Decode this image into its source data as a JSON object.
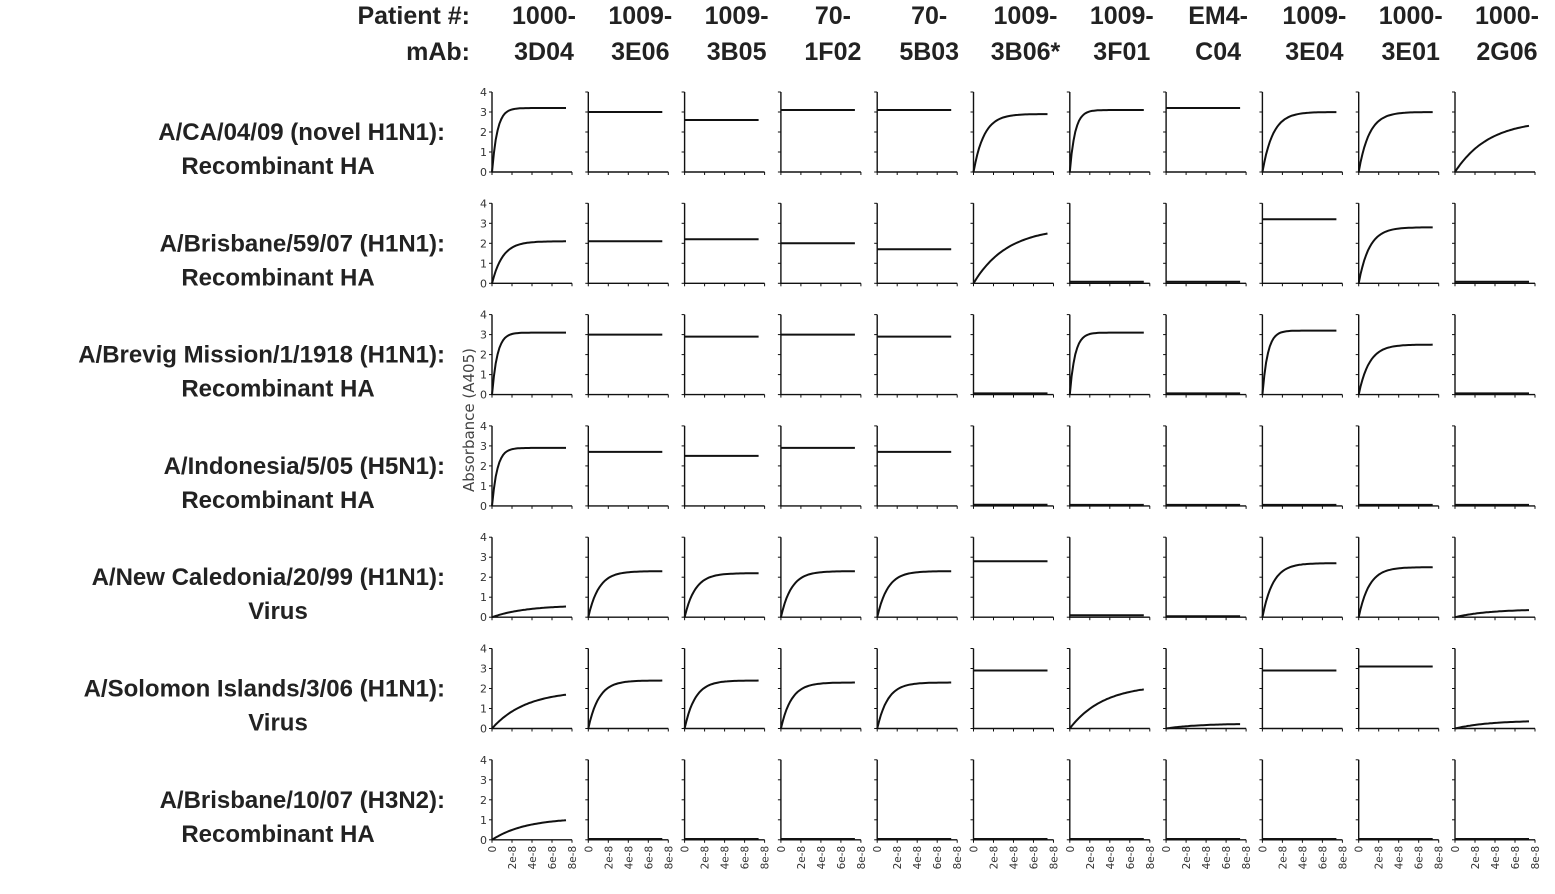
{
  "header": {
    "row1_label": "Patient #:",
    "row2_label": "mAb:"
  },
  "chart_data": {
    "type": "line",
    "ylabel": "Absorbance (A405)",
    "ylim": [
      0,
      4
    ],
    "yticks": [
      "0",
      "1",
      "2",
      "3",
      "4"
    ],
    "xlim": [
      0,
      8e-08
    ],
    "xticks": [
      "0",
      "2e-8",
      "4e-8",
      "6e-8",
      "8e-8"
    ],
    "columns": [
      {
        "patient": "1000-",
        "mab": "3D04"
      },
      {
        "patient": "1009-",
        "mab": "3E06"
      },
      {
        "patient": "1009-",
        "mab": "3B05"
      },
      {
        "patient": "70-",
        "mab": "1F02"
      },
      {
        "patient": "70-",
        "mab": "5B03"
      },
      {
        "patient": "1009-",
        "mab": "3B06*"
      },
      {
        "patient": "1009-",
        "mab": "3F01"
      },
      {
        "patient": "EM4-",
        "mab": "C04"
      },
      {
        "patient": "1009-",
        "mab": "3E04"
      },
      {
        "patient": "1000-",
        "mab": "3E01"
      },
      {
        "patient": "1000-",
        "mab": "2G06"
      }
    ],
    "rows": [
      {
        "line1": "A/CA/04/09 (novel H1N1):",
        "line2": "Recombinant HA",
        "plateau": [
          3.2,
          3.0,
          2.6,
          3.1,
          3.1,
          2.9,
          3.1,
          3.2,
          3.0,
          3.0,
          2.6
        ],
        "shape": [
          "fast",
          "flat",
          "flat",
          "flat",
          "flat",
          "mid",
          "fast",
          "flat",
          "mid",
          "mid",
          "slow"
        ]
      },
      {
        "line1": "A/Brisbane/59/07 (H1N1):",
        "line2": "Recombinant HA",
        "plateau": [
          2.1,
          2.1,
          2.2,
          2.0,
          1.7,
          2.8,
          0.08,
          0.08,
          3.2,
          2.8,
          0.08
        ],
        "shape": [
          "mid",
          "flat",
          "flat",
          "flat",
          "flat",
          "slow",
          "flat",
          "flat",
          "flat",
          "mid",
          "flat"
        ]
      },
      {
        "line1": "A/Brevig Mission/1/1918 (H1N1):",
        "line2": "Recombinant HA",
        "plateau": [
          3.1,
          3.0,
          2.9,
          3.0,
          2.9,
          0.06,
          3.1,
          0.06,
          3.2,
          2.5,
          0.06
        ],
        "shape": [
          "fast",
          "flat",
          "flat",
          "flat",
          "flat",
          "flat",
          "fast",
          "flat",
          "fast",
          "mid",
          "flat"
        ]
      },
      {
        "line1": "A/Indonesia/5/05 (H5N1):",
        "line2": "Recombinant HA",
        "plateau": [
          2.9,
          2.7,
          2.5,
          2.9,
          2.7,
          0.06,
          0.05,
          0.05,
          0.05,
          0.05,
          0.05
        ],
        "shape": [
          "fast",
          "flat",
          "flat",
          "flat",
          "flat",
          "flat",
          "flat",
          "flat",
          "flat",
          "flat",
          "flat"
        ]
      },
      {
        "line1": "A/New Caledonia/20/99 (H1N1):",
        "line2": "Virus",
        "plateau": [
          0.6,
          2.3,
          2.2,
          2.3,
          2.3,
          2.8,
          0.1,
          0.05,
          2.7,
          2.5,
          0.4
        ],
        "shape": [
          "slow",
          "mid",
          "mid",
          "mid",
          "mid",
          "flat",
          "flat",
          "flat",
          "mid",
          "mid",
          "slow"
        ]
      },
      {
        "line1": "A/Solomon Islands/3/06 (H1N1):",
        "line2": "Virus",
        "plateau": [
          1.9,
          2.4,
          2.4,
          2.3,
          2.3,
          2.9,
          2.2,
          0.25,
          2.9,
          3.1,
          0.4
        ],
        "shape": [
          "slow",
          "mid",
          "mid",
          "mid",
          "mid",
          "flat",
          "slow",
          "slow",
          "flat",
          "flat",
          "slow"
        ]
      },
      {
        "line1": "A/Brisbane/10/07 (H3N2):",
        "line2": "Recombinant HA",
        "plateau": [
          1.1,
          0.04,
          0.04,
          0.04,
          0.04,
          0.04,
          0.04,
          0.04,
          0.04,
          0.04,
          0.04
        ],
        "shape": [
          "slow",
          "flat",
          "flat",
          "flat",
          "flat",
          "flat",
          "flat",
          "flat",
          "flat",
          "flat",
          "flat"
        ]
      }
    ]
  }
}
